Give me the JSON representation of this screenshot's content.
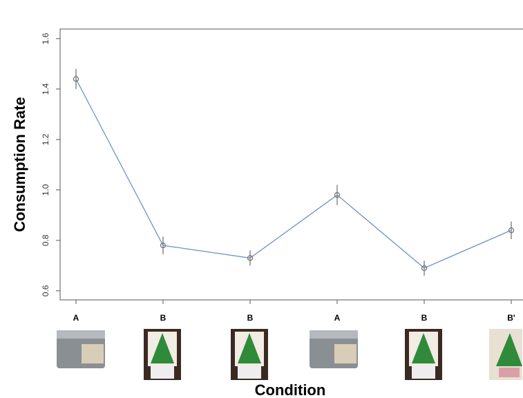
{
  "chart_data": {
    "type": "line",
    "x_label": "Condition",
    "y_label": "Consumption Rate",
    "categories": [
      "A",
      "B",
      "B",
      "A",
      "B",
      "B'"
    ],
    "series": [
      {
        "color": "#6b93c8",
        "values": [
          1.44,
          0.78,
          0.73,
          0.98,
          0.69,
          0.84
        ],
        "errors": [
          0.04,
          0.035,
          0.03,
          0.04,
          0.03,
          0.035
        ]
      }
    ],
    "ylim": [
      0.564,
      1.638
    ],
    "yticks": [
      0.6,
      0.8,
      {
        "value": 1,
        "label": "1.0"
      },
      1.2,
      1.4,
      1.6
    ]
  }
}
